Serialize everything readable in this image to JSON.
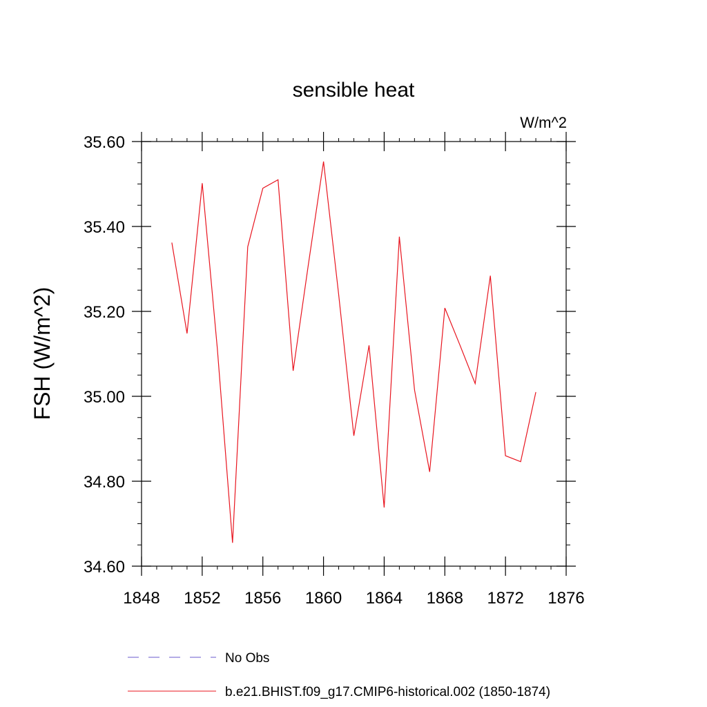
{
  "chart_data": {
    "type": "line",
    "title": "sensible heat",
    "units": "W/m^2",
    "xlabel": "",
    "ylabel": "FSH  (W/m^2)",
    "xlim": [
      1848,
      1876
    ],
    "ylim": [
      34.6,
      35.6
    ],
    "x_ticks": [
      "1848",
      "1852",
      "1856",
      "1860",
      "1864",
      "1868",
      "1872",
      "1876"
    ],
    "y_ticks": [
      "34.60",
      "34.80",
      "35.00",
      "35.20",
      "35.40",
      "35.60"
    ],
    "x_tick_values": [
      1848,
      1852,
      1856,
      1860,
      1864,
      1868,
      1872,
      1876
    ],
    "y_tick_values": [
      34.6,
      34.8,
      35.0,
      35.2,
      35.4,
      35.6
    ],
    "grid": false,
    "legend_position": "bottom",
    "series": [
      {
        "name": "b.e21.BHIST.f09_g17.CMIP6-historical.002 (1850-1874)",
        "color": "#e8141e",
        "style": "solid",
        "x": [
          1850,
          1851,
          1852,
          1853,
          1854,
          1855,
          1856,
          1857,
          1858,
          1859,
          1860,
          1861,
          1862,
          1863,
          1864,
          1865,
          1866,
          1867,
          1868,
          1869,
          1870,
          1871,
          1872,
          1873,
          1874
        ],
        "y": [
          35.362,
          35.148,
          35.502,
          35.112,
          34.655,
          35.352,
          35.49,
          35.51,
          35.06,
          35.31,
          35.553,
          35.24,
          34.907,
          35.12,
          34.738,
          35.376,
          35.015,
          34.822,
          35.208,
          35.12,
          35.03,
          35.284,
          34.86,
          34.846,
          35.01
        ]
      }
    ],
    "legend": [
      {
        "label": "No Obs",
        "color": "#6a5acd",
        "style": "dashed"
      },
      {
        "label": "b.e21.BHIST.f09_g17.CMIP6-historical.002 (1850-1874)",
        "color": "#e8141e",
        "style": "solid"
      }
    ]
  }
}
